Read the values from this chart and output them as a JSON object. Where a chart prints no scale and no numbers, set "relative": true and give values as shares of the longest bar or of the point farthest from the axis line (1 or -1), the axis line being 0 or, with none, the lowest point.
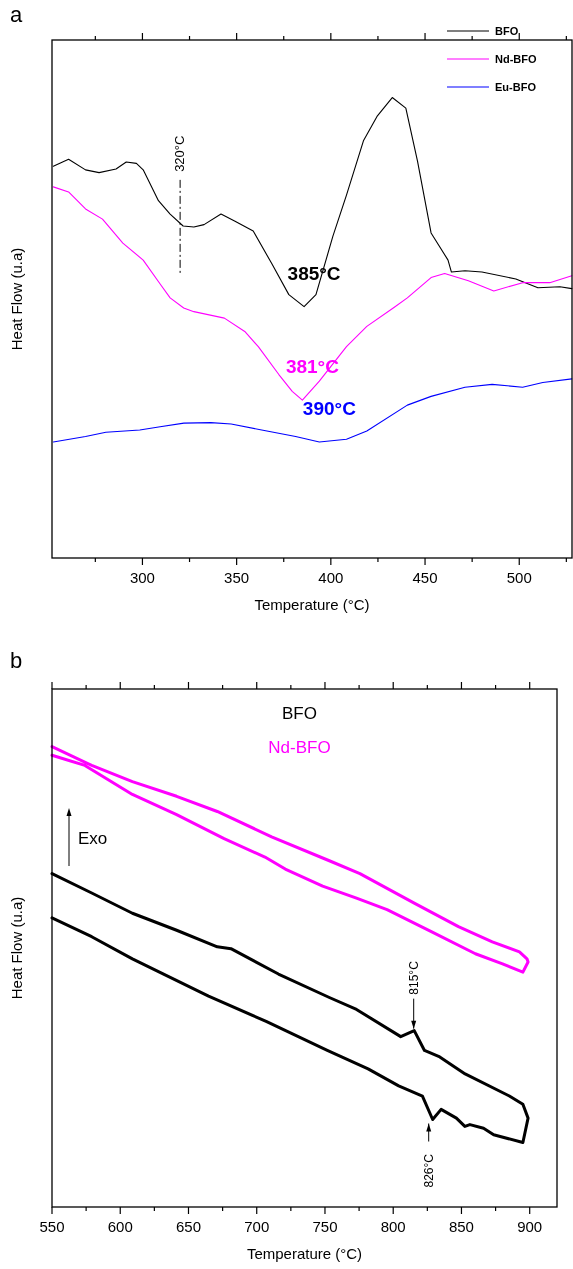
{
  "chart_data": [
    {
      "type": "line",
      "title": "a",
      "xlabel": "Temperature (°C)",
      "ylabel": "Heat Flow (u.a)",
      "relative": true,
      "xlim": [
        252,
        528
      ],
      "xticks": [
        {
          "value": 275,
          "label": null
        },
        300,
        {
          "value": 325,
          "label": null
        },
        350,
        {
          "value": 375,
          "label": null
        },
        400,
        {
          "value": 425,
          "label": null
        },
        450,
        {
          "value": 475,
          "label": null
        },
        500,
        {
          "value": 525,
          "label": null
        }
      ],
      "legend": "top right",
      "grid": false,
      "marker": "none",
      "series": [
        {
          "name": "BFO",
          "color": "#000000",
          "x": [
            252.7,
            260.8,
            269.8,
            277,
            286,
            291.4,
            296.8,
            300.4,
            308.5,
            314.7,
            321.6,
            327.3,
            332.7,
            341.7,
            348.9,
            358.8,
            368.7,
            377.7,
            385.8,
            392.1,
            401.1,
            408.3,
            417.3,
            424.5,
            432.6,
            439.8,
            446,
            453.2,
            462.2,
            464,
            471.2,
            480.2,
            498.2,
            509.9,
            521.6,
            527.9
          ],
          "values": [
            0.851,
            0.866,
            0.843,
            0.837,
            0.845,
            0.86,
            0.857,
            0.843,
            0.776,
            0.747,
            0.721,
            0.719,
            0.724,
            0.747,
            0.732,
            0.71,
            0.639,
            0.572,
            0.546,
            0.572,
            0.699,
            0.788,
            0.906,
            0.959,
            1,
            0.977,
            0.862,
            0.706,
            0.647,
            0.621,
            0.624,
            0.621,
            0.606,
            0.587,
            0.589,
            0.585
          ]
        },
        {
          "name": "Nd-BFO",
          "color": "#ff00ff",
          "x": [
            252.7,
            260.8,
            269.8,
            278.8,
            284.2,
            289.6,
            300.4,
            309.4,
            314.7,
            321.9,
            327.3,
            343.5,
            354.3,
            361.5,
            372.3,
            379.5,
            384.9,
            393.9,
            408.3,
            419.1,
            433.5,
            440.6,
            453.2,
            460.4,
            473,
            486.5,
            501.8,
            516.2,
            527.9
          ],
          "values": [
            0.806,
            0.795,
            0.758,
            0.736,
            0.71,
            0.684,
            0.647,
            0.595,
            0.565,
            0.543,
            0.535,
            0.521,
            0.492,
            0.459,
            0.399,
            0.362,
            0.343,
            0.384,
            0.459,
            0.503,
            0.544,
            0.565,
            0.609,
            0.618,
            0.602,
            0.58,
            0.598,
            0.598,
            0.613
          ]
        },
        {
          "name": "Eu-BFO",
          "color": "#0000ff",
          "x": [
            252.7,
            269.8,
            280.6,
            298.6,
            309.4,
            322,
            336.3,
            347.1,
            363.3,
            381.3,
            393.9,
            408.3,
            419.1,
            440.6,
            453.2,
            471.2,
            485.6,
            501.8,
            512.5,
            527.9
          ],
          "values": [
            0.252,
            0.264,
            0.273,
            0.278,
            0.285,
            0.293,
            0.294,
            0.291,
            0.278,
            0.264,
            0.252,
            0.258,
            0.276,
            0.332,
            0.351,
            0.371,
            0.377,
            0.371,
            0.381,
            0.389
          ]
        }
      ],
      "ref_lines": [
        {
          "axis": "x",
          "value": 320,
          "label": "320°C",
          "color": "#000000",
          "line_style": "dashed"
        }
      ],
      "annotations": [
        "385°C",
        "381°C",
        "390°C"
      ]
    },
    {
      "type": "line",
      "title": "b",
      "xlabel": "Temperature (°C)",
      "ylabel": "Heat Flow (u.a)",
      "relative": true,
      "xlim": [
        550,
        920
      ],
      "xticks": [
        550,
        {
          "value": 575,
          "label": null
        },
        600,
        {
          "value": 625,
          "label": null
        },
        650,
        {
          "value": 675,
          "label": null
        },
        700,
        {
          "value": 725,
          "label": null
        },
        750,
        {
          "value": 775,
          "label": null
        },
        800,
        {
          "value": 825,
          "label": null
        },
        850,
        {
          "value": 875,
          "label": null
        },
        900
      ],
      "legend": "top",
      "grid": false,
      "marker": "none",
      "series": [
        {
          "name": "BFO",
          "color": "#000000",
          "x": [
            550,
            579.1,
            608.9,
            641.3,
            671.1,
            681.1,
            715.9,
            753.2,
            773.1,
            805.5,
            815.4,
            822.9,
            834.1,
            852.7,
            885.1,
            895,
            898.8,
            895,
            873.6,
            866.2,
            856.2,
            852.5,
            846.3,
            835.1,
            828.9,
            821.4,
            804,
            781.6,
            751.7,
            706.9,
            664.7,
            608.9,
            579.1,
            550
          ],
          "values": [
            0.724,
            0.682,
            0.638,
            0.601,
            0.565,
            0.561,
            0.506,
            0.455,
            0.429,
            0.37,
            0.383,
            0.34,
            0.326,
            0.289,
            0.241,
            0.223,
            0.193,
            0.14,
            0.157,
            0.171,
            0.179,
            0.175,
            0.193,
            0.212,
            0.19,
            0.241,
            0.263,
            0.3,
            0.34,
            0.403,
            0.458,
            0.539,
            0.587,
            0.628
          ]
        },
        {
          "name": "Nd-BFO",
          "color": "#ff00ff",
          "x": [
            550,
            579.1,
            608.9,
            641.3,
            671.1,
            710.9,
            753.2,
            775.6,
            815.4,
            847.8,
            872.6,
            892.5,
            898,
            898.8,
            895,
            880.1,
            860.2,
            827.9,
            795.5,
            773.1,
            748.3,
            720.9,
            706,
            676.1,
            641.3,
            608.9,
            574.1,
            550
          ],
          "values": [
            1,
            0.959,
            0.924,
            0.892,
            0.859,
            0.804,
            0.752,
            0.724,
            0.66,
            0.609,
            0.576,
            0.554,
            0.539,
            0.532,
            0.51,
            0.528,
            0.55,
            0.598,
            0.646,
            0.671,
            0.697,
            0.734,
            0.76,
            0.8,
            0.852,
            0.896,
            0.959,
            0.981
          ]
        }
      ],
      "annotations": [
        "Exo",
        {
          "text": "815°C",
          "x": 815,
          "y": 0.383
        },
        {
          "text": "826°C",
          "x": 826,
          "y": 0.19
        }
      ]
    }
  ]
}
